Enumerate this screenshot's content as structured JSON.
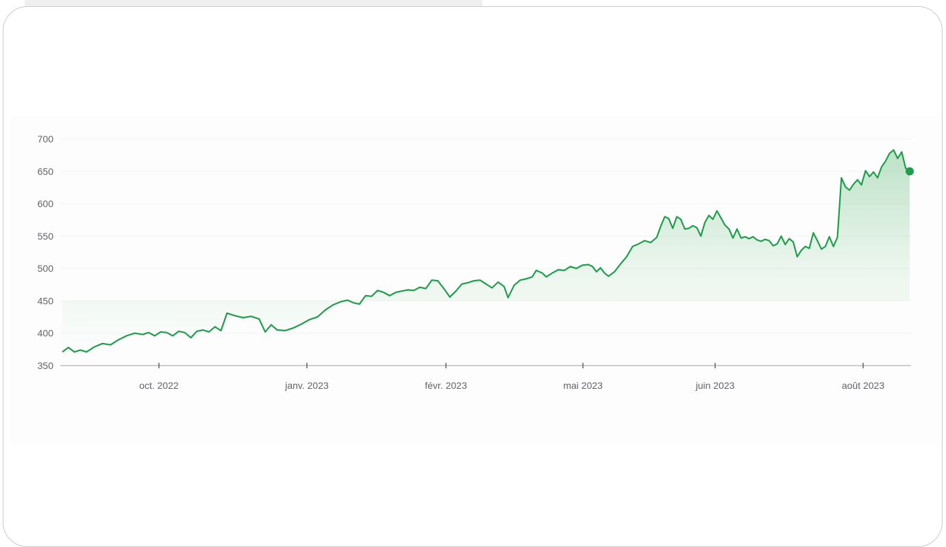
{
  "colors": {
    "line": "#1e9e4a",
    "area_top": "#34a853",
    "grid": "#f1f3f4",
    "axis": "#9aa0a6",
    "tick_text": "#5f6368"
  },
  "chart_data": {
    "type": "area",
    "title": "",
    "xlabel": "",
    "ylabel": "",
    "ylim": [
      350,
      700
    ],
    "yticks": [
      350,
      400,
      450,
      500,
      550,
      600,
      650,
      700
    ],
    "ytick_labels": [
      "350",
      "400",
      "450",
      "500",
      "550",
      "600",
      "650",
      "700"
    ],
    "xticks": [
      {
        "x": "2022-10-01",
        "label": "oct. 2022"
      },
      {
        "x": "2023-01-01",
        "label": "janv. 2023"
      },
      {
        "x": "2023-02-01",
        "label": "févr. 2023"
      },
      {
        "x": "2023-05-01",
        "label": "mai 2023"
      },
      {
        "x": "2023-06-01",
        "label": "juin 2023"
      },
      {
        "x": "2023-08-01",
        "label": "août 2023"
      }
    ],
    "grid": true,
    "series": [
      {
        "values": [
          [
            "2022-08-10",
            371
          ],
          [
            "2022-08-13",
            378
          ],
          [
            "2022-08-16",
            371
          ],
          [
            "2022-08-19",
            374
          ],
          [
            "2022-08-22",
            371
          ],
          [
            "2022-08-26",
            379
          ],
          [
            "2022-08-30",
            384
          ],
          [
            "2022-09-03",
            382
          ],
          [
            "2022-09-07",
            390
          ],
          [
            "2022-09-11",
            396
          ],
          [
            "2022-09-15",
            400
          ],
          [
            "2022-09-19",
            398
          ],
          [
            "2022-09-22",
            401
          ],
          [
            "2022-09-25",
            396
          ],
          [
            "2022-09-28",
            402
          ],
          [
            "2022-10-01",
            401
          ],
          [
            "2022-10-04",
            396
          ],
          [
            "2022-10-07",
            403
          ],
          [
            "2022-10-10",
            401
          ],
          [
            "2022-10-13",
            393
          ],
          [
            "2022-10-16",
            403
          ],
          [
            "2022-10-19",
            405
          ],
          [
            "2022-10-22",
            402
          ],
          [
            "2022-10-25",
            410
          ],
          [
            "2022-10-28",
            404
          ],
          [
            "2022-10-31",
            431
          ],
          [
            "2022-11-04",
            427
          ],
          [
            "2022-11-08",
            424
          ],
          [
            "2022-11-12",
            426
          ],
          [
            "2022-11-16",
            422
          ],
          [
            "2022-11-19",
            402
          ],
          [
            "2022-11-22",
            413
          ],
          [
            "2022-11-25",
            405
          ],
          [
            "2022-11-29",
            404
          ],
          [
            "2022-12-03",
            408
          ],
          [
            "2022-12-07",
            414
          ],
          [
            "2022-12-11",
            421
          ],
          [
            "2022-12-15",
            425
          ],
          [
            "2022-12-19",
            436
          ],
          [
            "2022-12-23",
            444
          ],
          [
            "2022-12-27",
            449
          ],
          [
            "2022-12-30",
            451
          ],
          [
            "2023-01-02",
            447
          ],
          [
            "2023-01-05",
            445
          ],
          [
            "2023-01-08",
            458
          ],
          [
            "2023-01-11",
            457
          ],
          [
            "2023-01-14",
            466
          ],
          [
            "2023-01-17",
            463
          ],
          [
            "2023-01-20",
            458
          ],
          [
            "2023-01-23",
            463
          ],
          [
            "2023-01-26",
            465
          ],
          [
            "2023-01-29",
            467
          ],
          [
            "2023-02-01",
            466
          ],
          [
            "2023-02-04",
            471
          ],
          [
            "2023-02-07",
            469
          ],
          [
            "2023-02-10",
            482
          ],
          [
            "2023-02-13",
            481
          ],
          [
            "2023-02-16",
            469
          ],
          [
            "2023-02-19",
            456
          ],
          [
            "2023-02-22",
            465
          ],
          [
            "2023-02-25",
            476
          ],
          [
            "2023-02-28",
            478
          ],
          [
            "2023-03-03",
            481
          ],
          [
            "2023-03-06",
            482
          ],
          [
            "2023-03-09",
            476
          ],
          [
            "2023-03-12",
            470
          ],
          [
            "2023-03-15",
            479
          ],
          [
            "2023-03-18",
            472
          ],
          [
            "2023-03-20",
            455
          ],
          [
            "2023-03-23",
            474
          ],
          [
            "2023-03-26",
            482
          ],
          [
            "2023-03-29",
            484
          ],
          [
            "2023-04-01",
            487
          ],
          [
            "2023-04-03",
            497
          ],
          [
            "2023-04-06",
            493
          ],
          [
            "2023-04-08",
            487
          ],
          [
            "2023-04-11",
            493
          ],
          [
            "2023-04-14",
            498
          ],
          [
            "2023-04-17",
            497
          ],
          [
            "2023-04-20",
            503
          ],
          [
            "2023-04-23",
            500
          ],
          [
            "2023-04-26",
            505
          ],
          [
            "2023-04-29",
            506
          ],
          [
            "2023-05-01",
            503
          ],
          [
            "2023-05-03",
            495
          ],
          [
            "2023-05-05",
            501
          ],
          [
            "2023-05-07",
            493
          ],
          [
            "2023-05-09",
            488
          ],
          [
            "2023-05-12",
            495
          ],
          [
            "2023-05-15",
            507
          ],
          [
            "2023-05-18",
            518
          ],
          [
            "2023-05-21",
            534
          ],
          [
            "2023-05-24",
            538
          ],
          [
            "2023-05-27",
            543
          ],
          [
            "2023-05-30",
            540
          ],
          [
            "2023-06-02",
            548
          ],
          [
            "2023-06-04",
            565
          ],
          [
            "2023-06-06",
            580
          ],
          [
            "2023-06-08",
            577
          ],
          [
            "2023-06-10",
            562
          ],
          [
            "2023-06-12",
            580
          ],
          [
            "2023-06-14",
            576
          ],
          [
            "2023-06-16",
            561
          ],
          [
            "2023-06-18",
            562
          ],
          [
            "2023-06-20",
            566
          ],
          [
            "2023-06-22",
            563
          ],
          [
            "2023-06-24",
            550
          ],
          [
            "2023-06-26",
            571
          ],
          [
            "2023-06-28",
            582
          ],
          [
            "2023-06-30",
            576
          ],
          [
            "2023-07-02",
            589
          ],
          [
            "2023-07-04",
            578
          ],
          [
            "2023-07-06",
            567
          ],
          [
            "2023-07-08",
            561
          ],
          [
            "2023-07-10",
            547
          ],
          [
            "2023-07-12",
            561
          ],
          [
            "2023-07-14",
            547
          ],
          [
            "2023-07-16",
            549
          ],
          [
            "2023-07-18",
            546
          ],
          [
            "2023-07-20",
            549
          ],
          [
            "2023-07-22",
            544
          ],
          [
            "2023-07-24",
            542
          ],
          [
            "2023-07-26",
            545
          ],
          [
            "2023-07-28",
            543
          ],
          [
            "2023-07-30",
            535
          ],
          [
            "2023-08-01",
            538
          ],
          [
            "2023-08-03",
            550
          ],
          [
            "2023-08-05",
            537
          ],
          [
            "2023-08-07",
            546
          ],
          [
            "2023-08-09",
            541
          ],
          [
            "2023-08-11",
            518
          ],
          [
            "2023-08-13",
            528
          ],
          [
            "2023-08-15",
            534
          ],
          [
            "2023-08-17",
            531
          ],
          [
            "2023-08-19",
            555
          ],
          [
            "2023-08-21",
            543
          ],
          [
            "2023-08-23",
            530
          ],
          [
            "2023-08-25",
            534
          ],
          [
            "2023-08-27",
            549
          ],
          [
            "2023-08-29",
            534
          ],
          [
            "2023-08-31",
            548
          ],
          [
            "2023-09-02",
            640
          ],
          [
            "2023-09-04",
            626
          ],
          [
            "2023-09-06",
            621
          ],
          [
            "2023-09-08",
            630
          ],
          [
            "2023-09-10",
            637
          ],
          [
            "2023-09-12",
            629
          ],
          [
            "2023-09-14",
            651
          ],
          [
            "2023-09-16",
            642
          ],
          [
            "2023-09-18",
            649
          ],
          [
            "2023-09-20",
            640
          ],
          [
            "2023-09-22",
            657
          ],
          [
            "2023-09-24",
            666
          ],
          [
            "2023-09-26",
            678
          ],
          [
            "2023-09-28",
            683
          ],
          [
            "2023-09-30",
            670
          ],
          [
            "2023-10-02",
            680
          ],
          [
            "2023-10-04",
            655
          ],
          [
            "2023-10-06",
            650
          ]
        ]
      }
    ]
  }
}
